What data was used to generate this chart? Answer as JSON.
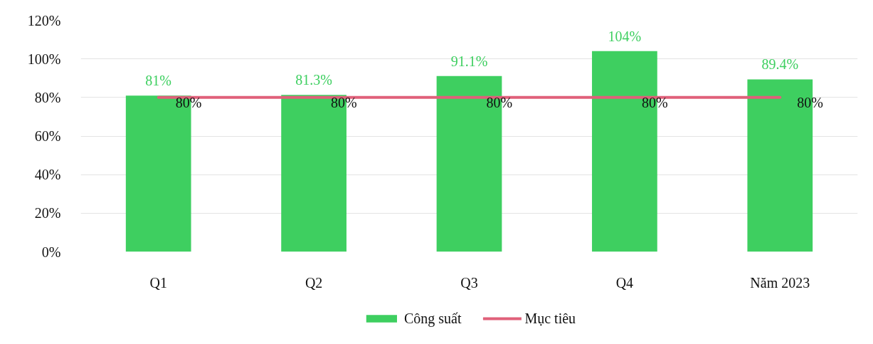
{
  "chart_data": {
    "type": "bar",
    "categories": [
      "Q1",
      "Q2",
      "Q3",
      "Q4",
      "Năm 2023"
    ],
    "series": [
      {
        "name": "Công suất",
        "color": "#3ecf60",
        "values": [
          81,
          81.3,
          91.1,
          104,
          89.4
        ],
        "value_labels": [
          "81%",
          "81.3%",
          "91.1%",
          "104%",
          "89.4%"
        ]
      },
      {
        "name": "Mục tiêu",
        "type": "line",
        "color": "#e0607a",
        "values": [
          80,
          80,
          80,
          80,
          80
        ],
        "value_labels": [
          "80%",
          "80%",
          "80%",
          "80%",
          "80%"
        ]
      }
    ],
    "ylim": [
      0,
      120
    ],
    "yticks": [
      {
        "value": 0,
        "label": "0%"
      },
      {
        "value": 20,
        "label": "20%"
      },
      {
        "value": 40,
        "label": "40%"
      },
      {
        "value": 60,
        "label": "60%"
      },
      {
        "value": 80,
        "label": "80%"
      },
      {
        "value": 100,
        "label": "100%"
      },
      {
        "value": 120,
        "label": "120%"
      }
    ],
    "grid": "y",
    "legend": "bottom"
  }
}
